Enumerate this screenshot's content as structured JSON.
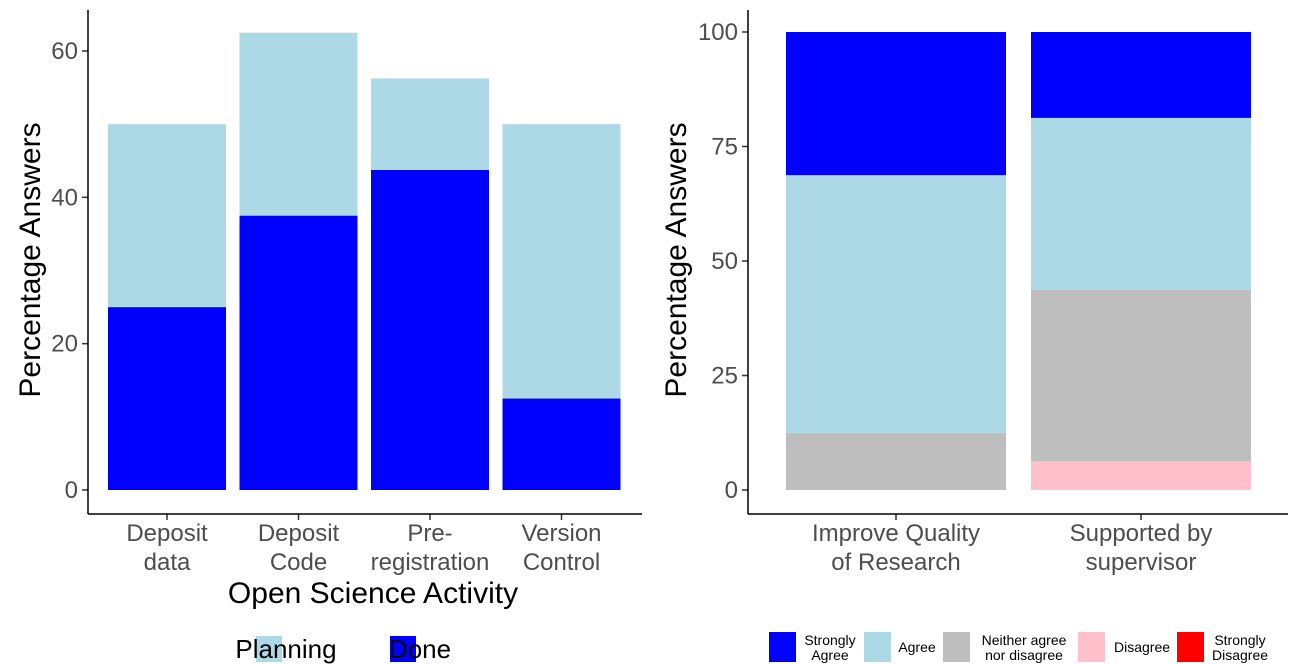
{
  "chart_data": [
    {
      "type": "bar",
      "stacked": true,
      "title": "",
      "xlabel": "Open Science Activity",
      "ylabel": "Percentage Answers",
      "ylim": [
        0,
        65
      ],
      "yticks": [
        0,
        20,
        40,
        60
      ],
      "grid": false,
      "legend_position": "bottom",
      "categories": [
        [
          "Deposit",
          "data"
        ],
        [
          "Deposit",
          "Code"
        ],
        [
          "Pre-",
          "registration"
        ],
        [
          "Version",
          "Control"
        ]
      ],
      "series": [
        {
          "name": "Planning",
          "color": "#ADD8E6",
          "values": [
            25,
            25,
            12.5,
            37.5
          ]
        },
        {
          "name": "Done",
          "color": "#0000FF",
          "values": [
            25,
            37.5,
            43.75,
            12.5
          ]
        }
      ],
      "stack_order": [
        "Done",
        "Planning"
      ],
      "legend": [
        {
          "label": "Planning",
          "color": "#ADD8E6"
        },
        {
          "label": "Done",
          "color": "#0000FF"
        }
      ]
    },
    {
      "type": "bar",
      "stacked": true,
      "title": "",
      "xlabel": "",
      "ylabel": "Percentage Answers",
      "ylim": [
        0,
        105
      ],
      "yticks": [
        0,
        25,
        50,
        75,
        100
      ],
      "grid": false,
      "legend_position": "bottom",
      "categories": [
        [
          "Improve Quality",
          "of Research"
        ],
        [
          "Supported by",
          "supervisor"
        ]
      ],
      "series": [
        {
          "name": "Strongly Agree",
          "color": "#0000FF",
          "values": [
            31.25,
            18.75
          ]
        },
        {
          "name": "Agree",
          "color": "#ADD8E6",
          "values": [
            56.25,
            37.5
          ]
        },
        {
          "name": "Neither agree nor disagree",
          "color": "#BEBEBE",
          "values": [
            12.5,
            37.5
          ]
        },
        {
          "name": "Disagree",
          "color": "#FFC0CB",
          "values": [
            0,
            6.25
          ]
        },
        {
          "name": "Strongly Disagree",
          "color": "#FF0000",
          "values": [
            0,
            0
          ]
        }
      ],
      "stack_order": [
        "Strongly Disagree",
        "Disagree",
        "Neither agree nor disagree",
        "Agree",
        "Strongly Agree"
      ],
      "legend": [
        {
          "label": [
            "Strongly",
            "Agree"
          ],
          "color": "#0000FF"
        },
        {
          "label": [
            "Agree"
          ],
          "color": "#ADD8E6"
        },
        {
          "label": [
            "Neither agree",
            "nor disagree"
          ],
          "color": "#BEBEBE"
        },
        {
          "label": [
            "Disagree"
          ],
          "color": "#FFC0CB"
        },
        {
          "label": [
            "Strongly",
            "Disagree"
          ],
          "color": "#FF0000"
        }
      ]
    }
  ]
}
